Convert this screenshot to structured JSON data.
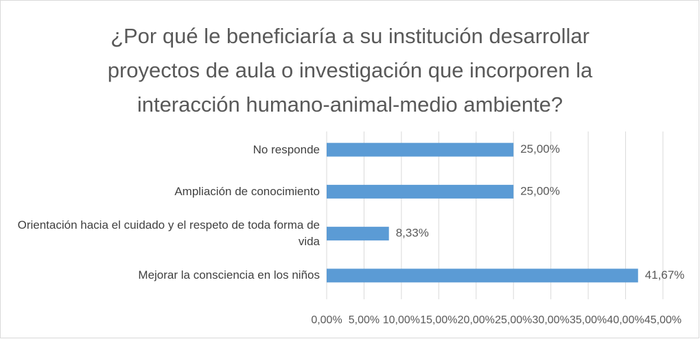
{
  "chart_data": {
    "type": "bar",
    "orientation": "horizontal",
    "title": "¿Por qué le beneficiaría a su institución desarrollar proyectos de aula o investigación que incorporen la interacción humano-animal-medio ambiente?",
    "categories": [
      "No responde",
      "Ampliación de conocimiento",
      "Orientación hacia el cuidado y el respeto de toda forma de vida",
      "Mejorar la consciencia en los niños"
    ],
    "values": [
      25,
      25,
      8.33,
      41.67
    ],
    "value_labels": [
      "25,00%",
      "25,00%",
      "8,33%",
      "41,67%"
    ],
    "color": "#5b9bd5",
    "xlim": [
      0,
      45
    ],
    "xticks": [
      {
        "value": 0,
        "label": "0,00%"
      },
      {
        "value": 5,
        "label": "5,00%"
      },
      {
        "value": 10,
        "label": "10,00%"
      },
      {
        "value": 15,
        "label": "15,00%"
      },
      {
        "value": 20,
        "label": "20,00%"
      },
      {
        "value": 25,
        "label": "25,00%"
      },
      {
        "value": 30,
        "label": "30,00%"
      },
      {
        "value": 35,
        "label": "35,00%"
      },
      {
        "value": 40,
        "label": "40,00%"
      },
      {
        "value": 45,
        "label": "45,00%"
      }
    ],
    "grid": true
  }
}
